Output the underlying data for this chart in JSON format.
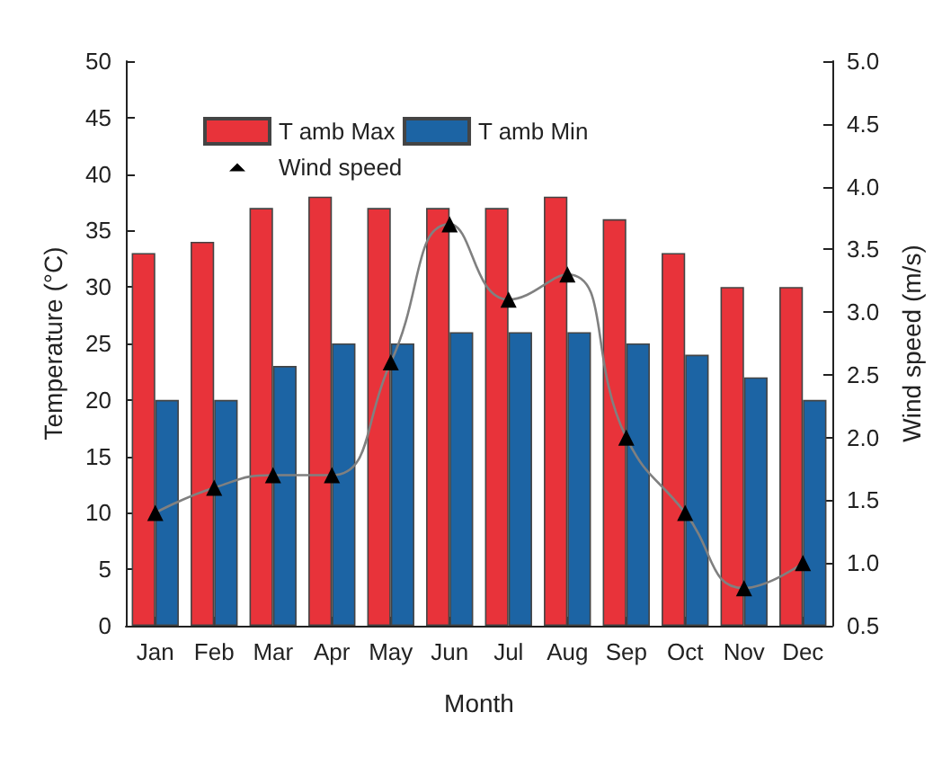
{
  "chart_data": {
    "type": "bar",
    "xlabel": "Month",
    "ylabel": "Temperature (°C)",
    "y2label": "Wind speed (m/s)",
    "categories": [
      "Jan",
      "Feb",
      "Mar",
      "Apr",
      "May",
      "Jun",
      "Jul",
      "Aug",
      "Sep",
      "Oct",
      "Nov",
      "Dec"
    ],
    "series": [
      {
        "name": "T amb Max",
        "color": "#e8333a",
        "values": [
          33,
          34,
          37,
          38,
          37,
          37,
          37,
          38,
          36,
          33,
          30,
          30
        ]
      },
      {
        "name": "T amb Min",
        "color": "#1c64a4",
        "values": [
          20,
          20,
          23,
          25,
          25,
          26,
          26,
          26,
          25,
          24,
          22,
          20
        ]
      },
      {
        "name": "Wind speed",
        "type": "line",
        "axis": "y2",
        "color": "#808080",
        "marker": "triangle",
        "values": [
          1.4,
          1.6,
          1.7,
          1.7,
          2.6,
          3.7,
          3.1,
          3.3,
          2.0,
          1.4,
          0.8,
          1.0
        ]
      }
    ],
    "ylim": [
      0,
      50
    ],
    "yticks": [
      0,
      5,
      10,
      15,
      20,
      25,
      30,
      35,
      40,
      45,
      50
    ],
    "y2lim": [
      0.5,
      5.0
    ],
    "y2ticks": [
      {
        "value": 0.5,
        "label": "0.5"
      },
      {
        "value": 1.0,
        "label": "1.0"
      },
      {
        "value": 1.5,
        "label": "1.5"
      },
      {
        "value": 2.0,
        "label": "2.0"
      },
      {
        "value": 2.5,
        "label": "2.5"
      },
      {
        "value": 3.0,
        "label": "3.0"
      },
      {
        "value": 3.5,
        "label": "3.5"
      },
      {
        "value": 4.0,
        "label": "4.0"
      },
      {
        "value": 4.5,
        "label": "4.5"
      },
      {
        "value": 5.0,
        "label": "5.0"
      }
    ],
    "legend": "top left",
    "grid": false
  }
}
